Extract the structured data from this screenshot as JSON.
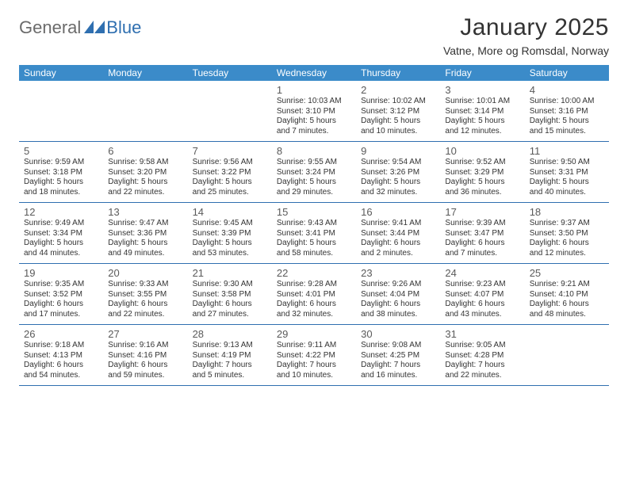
{
  "logo": {
    "word1": "General",
    "word2": "Blue"
  },
  "title": "January 2025",
  "subtitle": "Vatne, More og Romsdal, Norway",
  "colors": {
    "header_bg": "#3b8bc9",
    "header_text": "#ffffff",
    "row_border": "#2f6fb0",
    "logo_gray": "#6b6b6b",
    "logo_blue": "#2f6fb0",
    "body_text": "#333333",
    "daynum": "#5a5a5a",
    "page_bg": "#ffffff"
  },
  "typography": {
    "title_fontsize": 30,
    "subtitle_fontsize": 14,
    "weekday_fontsize": 12,
    "daynum_fontsize": 13,
    "body_fontsize": 10,
    "font_family": "Arial, Helvetica, sans-serif"
  },
  "calendar": {
    "type": "calendar-table",
    "columns": 7,
    "weekdays": [
      "Sunday",
      "Monday",
      "Tuesday",
      "Wednesday",
      "Thursday",
      "Friday",
      "Saturday"
    ],
    "weeks": [
      [
        {
          "num": "",
          "sunrise": "",
          "sunset": "",
          "daylight1": "",
          "daylight2": ""
        },
        {
          "num": "",
          "sunrise": "",
          "sunset": "",
          "daylight1": "",
          "daylight2": ""
        },
        {
          "num": "",
          "sunrise": "",
          "sunset": "",
          "daylight1": "",
          "daylight2": ""
        },
        {
          "num": "1",
          "sunrise": "Sunrise: 10:03 AM",
          "sunset": "Sunset: 3:10 PM",
          "daylight1": "Daylight: 5 hours",
          "daylight2": "and 7 minutes."
        },
        {
          "num": "2",
          "sunrise": "Sunrise: 10:02 AM",
          "sunset": "Sunset: 3:12 PM",
          "daylight1": "Daylight: 5 hours",
          "daylight2": "and 10 minutes."
        },
        {
          "num": "3",
          "sunrise": "Sunrise: 10:01 AM",
          "sunset": "Sunset: 3:14 PM",
          "daylight1": "Daylight: 5 hours",
          "daylight2": "and 12 minutes."
        },
        {
          "num": "4",
          "sunrise": "Sunrise: 10:00 AM",
          "sunset": "Sunset: 3:16 PM",
          "daylight1": "Daylight: 5 hours",
          "daylight2": "and 15 minutes."
        }
      ],
      [
        {
          "num": "5",
          "sunrise": "Sunrise: 9:59 AM",
          "sunset": "Sunset: 3:18 PM",
          "daylight1": "Daylight: 5 hours",
          "daylight2": "and 18 minutes."
        },
        {
          "num": "6",
          "sunrise": "Sunrise: 9:58 AM",
          "sunset": "Sunset: 3:20 PM",
          "daylight1": "Daylight: 5 hours",
          "daylight2": "and 22 minutes."
        },
        {
          "num": "7",
          "sunrise": "Sunrise: 9:56 AM",
          "sunset": "Sunset: 3:22 PM",
          "daylight1": "Daylight: 5 hours",
          "daylight2": "and 25 minutes."
        },
        {
          "num": "8",
          "sunrise": "Sunrise: 9:55 AM",
          "sunset": "Sunset: 3:24 PM",
          "daylight1": "Daylight: 5 hours",
          "daylight2": "and 29 minutes."
        },
        {
          "num": "9",
          "sunrise": "Sunrise: 9:54 AM",
          "sunset": "Sunset: 3:26 PM",
          "daylight1": "Daylight: 5 hours",
          "daylight2": "and 32 minutes."
        },
        {
          "num": "10",
          "sunrise": "Sunrise: 9:52 AM",
          "sunset": "Sunset: 3:29 PM",
          "daylight1": "Daylight: 5 hours",
          "daylight2": "and 36 minutes."
        },
        {
          "num": "11",
          "sunrise": "Sunrise: 9:50 AM",
          "sunset": "Sunset: 3:31 PM",
          "daylight1": "Daylight: 5 hours",
          "daylight2": "and 40 minutes."
        }
      ],
      [
        {
          "num": "12",
          "sunrise": "Sunrise: 9:49 AM",
          "sunset": "Sunset: 3:34 PM",
          "daylight1": "Daylight: 5 hours",
          "daylight2": "and 44 minutes."
        },
        {
          "num": "13",
          "sunrise": "Sunrise: 9:47 AM",
          "sunset": "Sunset: 3:36 PM",
          "daylight1": "Daylight: 5 hours",
          "daylight2": "and 49 minutes."
        },
        {
          "num": "14",
          "sunrise": "Sunrise: 9:45 AM",
          "sunset": "Sunset: 3:39 PM",
          "daylight1": "Daylight: 5 hours",
          "daylight2": "and 53 minutes."
        },
        {
          "num": "15",
          "sunrise": "Sunrise: 9:43 AM",
          "sunset": "Sunset: 3:41 PM",
          "daylight1": "Daylight: 5 hours",
          "daylight2": "and 58 minutes."
        },
        {
          "num": "16",
          "sunrise": "Sunrise: 9:41 AM",
          "sunset": "Sunset: 3:44 PM",
          "daylight1": "Daylight: 6 hours",
          "daylight2": "and 2 minutes."
        },
        {
          "num": "17",
          "sunrise": "Sunrise: 9:39 AM",
          "sunset": "Sunset: 3:47 PM",
          "daylight1": "Daylight: 6 hours",
          "daylight2": "and 7 minutes."
        },
        {
          "num": "18",
          "sunrise": "Sunrise: 9:37 AM",
          "sunset": "Sunset: 3:50 PM",
          "daylight1": "Daylight: 6 hours",
          "daylight2": "and 12 minutes."
        }
      ],
      [
        {
          "num": "19",
          "sunrise": "Sunrise: 9:35 AM",
          "sunset": "Sunset: 3:52 PM",
          "daylight1": "Daylight: 6 hours",
          "daylight2": "and 17 minutes."
        },
        {
          "num": "20",
          "sunrise": "Sunrise: 9:33 AM",
          "sunset": "Sunset: 3:55 PM",
          "daylight1": "Daylight: 6 hours",
          "daylight2": "and 22 minutes."
        },
        {
          "num": "21",
          "sunrise": "Sunrise: 9:30 AM",
          "sunset": "Sunset: 3:58 PM",
          "daylight1": "Daylight: 6 hours",
          "daylight2": "and 27 minutes."
        },
        {
          "num": "22",
          "sunrise": "Sunrise: 9:28 AM",
          "sunset": "Sunset: 4:01 PM",
          "daylight1": "Daylight: 6 hours",
          "daylight2": "and 32 minutes."
        },
        {
          "num": "23",
          "sunrise": "Sunrise: 9:26 AM",
          "sunset": "Sunset: 4:04 PM",
          "daylight1": "Daylight: 6 hours",
          "daylight2": "and 38 minutes."
        },
        {
          "num": "24",
          "sunrise": "Sunrise: 9:23 AM",
          "sunset": "Sunset: 4:07 PM",
          "daylight1": "Daylight: 6 hours",
          "daylight2": "and 43 minutes."
        },
        {
          "num": "25",
          "sunrise": "Sunrise: 9:21 AM",
          "sunset": "Sunset: 4:10 PM",
          "daylight1": "Daylight: 6 hours",
          "daylight2": "and 48 minutes."
        }
      ],
      [
        {
          "num": "26",
          "sunrise": "Sunrise: 9:18 AM",
          "sunset": "Sunset: 4:13 PM",
          "daylight1": "Daylight: 6 hours",
          "daylight2": "and 54 minutes."
        },
        {
          "num": "27",
          "sunrise": "Sunrise: 9:16 AM",
          "sunset": "Sunset: 4:16 PM",
          "daylight1": "Daylight: 6 hours",
          "daylight2": "and 59 minutes."
        },
        {
          "num": "28",
          "sunrise": "Sunrise: 9:13 AM",
          "sunset": "Sunset: 4:19 PM",
          "daylight1": "Daylight: 7 hours",
          "daylight2": "and 5 minutes."
        },
        {
          "num": "29",
          "sunrise": "Sunrise: 9:11 AM",
          "sunset": "Sunset: 4:22 PM",
          "daylight1": "Daylight: 7 hours",
          "daylight2": "and 10 minutes."
        },
        {
          "num": "30",
          "sunrise": "Sunrise: 9:08 AM",
          "sunset": "Sunset: 4:25 PM",
          "daylight1": "Daylight: 7 hours",
          "daylight2": "and 16 minutes."
        },
        {
          "num": "31",
          "sunrise": "Sunrise: 9:05 AM",
          "sunset": "Sunset: 4:28 PM",
          "daylight1": "Daylight: 7 hours",
          "daylight2": "and 22 minutes."
        },
        {
          "num": "",
          "sunrise": "",
          "sunset": "",
          "daylight1": "",
          "daylight2": ""
        }
      ]
    ]
  }
}
